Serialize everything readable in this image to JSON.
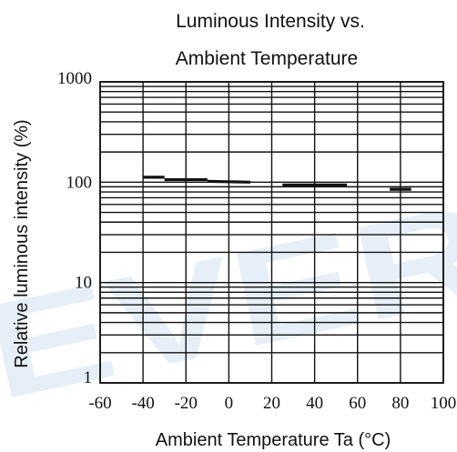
{
  "chart_data": {
    "type": "line",
    "title": [
      "Luminous Intensity vs.",
      "Ambient Temperature"
    ],
    "xlabel": "Ambient Temperature Ta (°C)",
    "ylabel": "Relative luminous intensity   (%)",
    "xlim": [
      -60,
      100
    ],
    "ylim": [
      1,
      1000
    ],
    "yscale": "log",
    "grid": true,
    "xticks": [
      -60,
      -40,
      -20,
      0,
      20,
      40,
      60,
      80,
      100
    ],
    "xtick_labels": [
      "-60",
      "-40",
      "-20",
      "0",
      "20",
      "40",
      "60",
      "80",
      "100"
    ],
    "yticks": [
      1,
      10,
      100,
      1000
    ],
    "ytick_labels": [
      "1",
      "10",
      "100",
      "1000"
    ],
    "series": [
      {
        "x": [
          -40,
          -30,
          -30,
          -10,
          -10,
          10,
          25,
          55,
          75,
          85
        ],
        "y": [
          112,
          112,
          106,
          106,
          102,
          100,
          94,
          94,
          85,
          85
        ],
        "segments": [
          [
            [
              -40,
              -30
            ],
            [
              112,
              112
            ]
          ],
          [
            [
              -30,
              -10
            ],
            [
              106,
              106
            ]
          ],
          [
            [
              -10,
              10
            ],
            [
              102,
              100
            ]
          ],
          [
            [
              25,
              55
            ],
            [
              94,
              94
            ]
          ],
          [
            [
              75,
              85
            ],
            [
              85,
              85
            ]
          ]
        ]
      }
    ],
    "watermark": "EVER",
    "colors": {
      "grid": "#111111",
      "line": "#111111",
      "watermark": "#6fa6dc"
    }
  }
}
